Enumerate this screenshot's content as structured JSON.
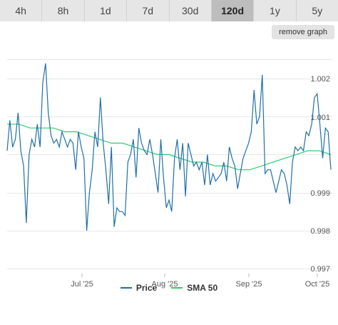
{
  "tabs": [
    {
      "label": "4h",
      "active": false
    },
    {
      "label": "8h",
      "active": false
    },
    {
      "label": "1d",
      "active": false
    },
    {
      "label": "7d",
      "active": false
    },
    {
      "label": "30d",
      "active": false
    },
    {
      "label": "120d",
      "active": true
    },
    {
      "label": "1y",
      "active": false
    },
    {
      "label": "5y",
      "active": false
    }
  ],
  "remove_graph_label": "remove graph",
  "colors": {
    "price": "#1f6fa8",
    "sma": "#2ecc71",
    "grid": "#e6e6e6"
  },
  "chart_data": {
    "type": "line",
    "x_ticks": [
      "Jul '25",
      "Aug '25",
      "Sep '25",
      "Oct '25"
    ],
    "y_ticks": [
      "0.997",
      "0.998",
      "0.999",
      "1.001",
      "1.002"
    ],
    "ylim": [
      0.997,
      1.0025
    ],
    "grid": true,
    "legend_position": "bottom",
    "series": [
      {
        "name": "Price",
        "color": "#1f6fa8",
        "values": [
          1.0001,
          1.0009,
          1.0002,
          1.0004,
          1.0011,
          1.0001,
          0.9997,
          0.9982,
          1.0,
          1.0004,
          1.0002,
          1.0008,
          1.0002,
          1.0019,
          1.0024,
          1.0011,
          1.0005,
          1.0003,
          1.0004,
          1.0002,
          1.0006,
          1.0004,
          1.0002,
          1.0004,
          1.0003,
          0.9996,
          1.0006,
          1.0002,
          0.9999,
          0.998,
          0.999,
          0.9996,
          1.0006,
          1.0002,
          1.0015,
          1.0003,
          0.9996,
          0.9987,
          1.0002,
          0.9981,
          0.9986,
          0.9985,
          0.9985,
          0.9984,
          0.9998,
          1.0,
          1.0004,
          0.9994,
          1.0007,
          1.0003,
          1.0001,
          1.0,
          1.0004,
          1.0,
          0.9995,
          0.999,
          1.0004,
          0.9994,
          0.9986,
          0.9988,
          0.9985,
          0.9999,
          1.0004,
          0.9996,
          1.0003,
          0.9989,
          1.0003,
          1.0,
          0.9997,
          0.9998,
          0.9996,
          0.9998,
          0.9992,
          1.0,
          0.9992,
          0.9995,
          0.9993,
          0.9994,
          0.9995,
          0.9998,
          0.9993,
          1.0002,
          0.9999,
          0.9997,
          0.9991,
          0.9995,
          0.9999,
          1.0001,
          1.0003,
          1.0006,
          1.0017,
          1.0008,
          1.001,
          1.0021,
          0.9995,
          0.9996,
          0.9996,
          0.9993,
          0.999,
          0.9993,
          0.9996,
          0.9995,
          0.9992,
          0.9987,
          0.9998,
          1.0002,
          1.0001,
          1.0002,
          1.0001,
          1.0006,
          1.0005,
          1.0008,
          1.0015,
          1.0016,
          1.0008,
          0.9999,
          1.0007,
          1.0006,
          0.9996
        ]
      },
      {
        "name": "SMA 50",
        "color": "#2ecc71",
        "values": [
          1.0008,
          1.0008,
          1.0007,
          1.0007,
          1.0007,
          1.0006,
          1.0006,
          1.0005,
          1.0004,
          1.0003,
          1.0003,
          1.0002,
          1.0001,
          1.0,
          1.0,
          0.9999,
          0.9998,
          0.9998,
          0.9997,
          0.9997,
          0.9996,
          0.9996,
          0.9997,
          0.9998,
          0.9999,
          1.0,
          1.0001,
          1.0001,
          1.0
        ]
      }
    ]
  }
}
